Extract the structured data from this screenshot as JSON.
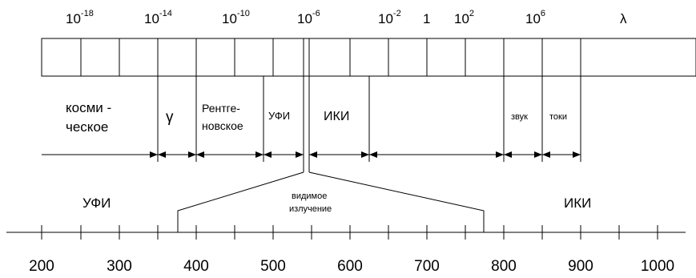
{
  "wavelength_scale": {
    "base": "10",
    "exponents": [
      "-18",
      "-14",
      "-10",
      "-6",
      "-2",
      "",
      "2",
      "6"
    ],
    "plain_one": "1",
    "axis_symbol": "λ"
  },
  "regions": {
    "cosmic_line1": "косми -",
    "cosmic_line2": "ческое",
    "gamma": "γ",
    "xray_line1": "Рентге-",
    "xray_line2": "новское",
    "uv": "УФИ",
    "ir": "ИКИ",
    "sound": "звук",
    "currents": "токи"
  },
  "visible_band": {
    "uv_label": "УФИ",
    "ir_label": "ИКИ",
    "visible_line1": "видимое",
    "visible_line2": "излучение",
    "ticks": [
      "200",
      "300",
      "400",
      "500",
      "600",
      "700",
      "800",
      "900",
      "1000"
    ]
  }
}
